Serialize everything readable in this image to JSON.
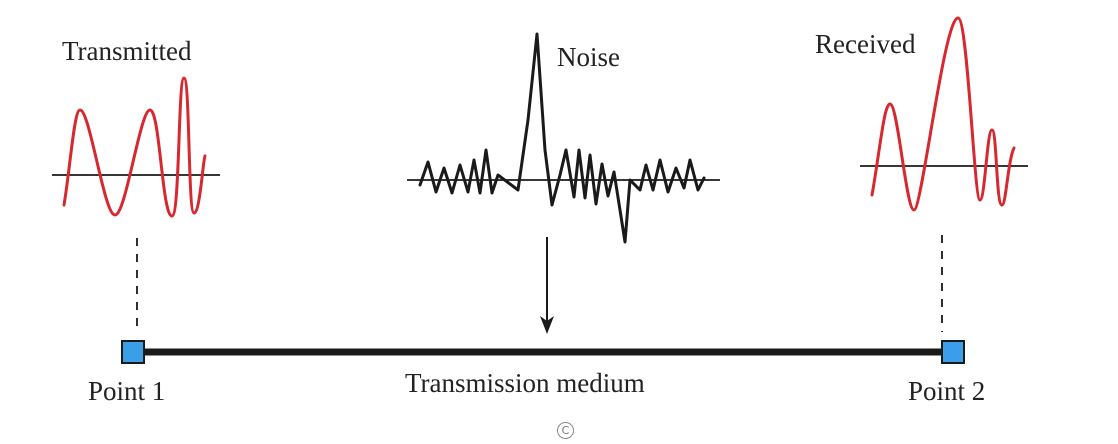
{
  "labels": {
    "transmitted": "Transmitted",
    "noise": "Noise",
    "received": "Received",
    "medium": "Transmission medium",
    "point1": "Point 1",
    "point2": "Point 2"
  },
  "copyright_symbol": "C",
  "colors": {
    "signal": "#d7282f",
    "noise": "#1a1a1a",
    "medium_line": "#1a1a1a",
    "endpoint_fill": "#3b9ee8",
    "endpoint_stroke": "#1a1a1a"
  },
  "icons": {
    "endpoint": "blue-square-icon",
    "arrow": "down-arrow-icon",
    "copyright": "copyright-icon"
  }
}
